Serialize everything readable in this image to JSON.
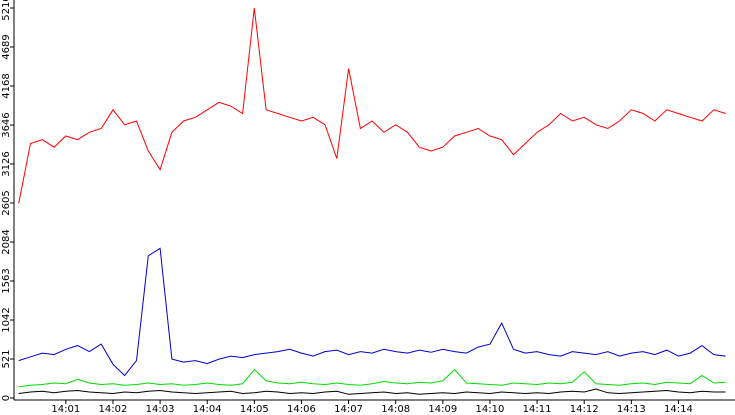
{
  "chart_data": {
    "type": "line",
    "x": [
      0,
      0.25,
      0.5,
      0.75,
      1,
      1.25,
      1.5,
      1.75,
      2,
      2.25,
      2.5,
      2.75,
      3,
      3.25,
      3.5,
      3.75,
      4,
      4.25,
      4.5,
      4.75,
      5,
      5.25,
      5.5,
      5.75,
      6,
      6.25,
      6.5,
      6.75,
      7,
      7.25,
      7.5,
      7.75,
      8,
      8.25,
      8.5,
      8.75,
      9,
      9.25,
      9.5,
      9.75,
      10,
      10.25,
      10.5,
      10.75,
      11,
      11.25,
      11.5,
      11.75,
      12,
      12.25,
      12.5,
      12.75,
      13,
      13.25,
      13.5,
      13.75,
      14,
      14.25,
      14.5,
      14.75,
      15
    ],
    "series": [
      {
        "color": "#ff0000",
        "values": [
          2600,
          3400,
          3450,
          3350,
          3500,
          3450,
          3550,
          3600,
          3850,
          3650,
          3700,
          3300,
          3050,
          3550,
          3700,
          3750,
          3850,
          3950,
          3900,
          3800,
          5210,
          3850,
          3800,
          3750,
          3700,
          3750,
          3650,
          3200,
          4400,
          3600,
          3700,
          3550,
          3650,
          3550,
          3350,
          3300,
          3350,
          3500,
          3550,
          3600,
          3500,
          3450,
          3250,
          3400,
          3550,
          3650,
          3800,
          3700,
          3750,
          3650,
          3600,
          3700,
          3850,
          3800,
          3700,
          3850,
          3800,
          3750,
          3700,
          3850,
          3800
        ]
      },
      {
        "color": "#0000cc",
        "values": [
          500,
          550,
          600,
          580,
          650,
          700,
          620,
          720,
          450,
          300,
          500,
          1900,
          2000,
          520,
          480,
          500,
          460,
          520,
          560,
          540,
          580,
          600,
          620,
          650,
          600,
          560,
          620,
          640,
          580,
          620,
          600,
          650,
          620,
          600,
          640,
          610,
          650,
          620,
          600,
          680,
          720,
          1000,
          650,
          600,
          620,
          580,
          560,
          620,
          600,
          580,
          620,
          560,
          600,
          620,
          580,
          640,
          560,
          600,
          700,
          580,
          560
        ]
      },
      {
        "color": "#00dd00",
        "values": [
          150,
          170,
          180,
          200,
          190,
          250,
          200,
          180,
          190,
          170,
          180,
          200,
          180,
          190,
          170,
          180,
          200,
          180,
          170,
          190,
          380,
          230,
          200,
          190,
          210,
          190,
          180,
          200,
          180,
          170,
          190,
          220,
          200,
          190,
          210,
          200,
          230,
          380,
          200,
          190,
          180,
          170,
          200,
          190,
          180,
          200,
          190,
          210,
          350,
          190,
          180,
          170,
          190,
          200,
          180,
          210,
          200,
          190,
          300,
          200,
          210
        ]
      },
      {
        "color": "#000000",
        "values": [
          60,
          80,
          90,
          70,
          90,
          100,
          80,
          70,
          60,
          80,
          70,
          90,
          100,
          80,
          70,
          60,
          70,
          80,
          90,
          60,
          70,
          90,
          80,
          60,
          70,
          60,
          80,
          90,
          50,
          60,
          70,
          80,
          60,
          70,
          50,
          60,
          70,
          60,
          80,
          70,
          60,
          80,
          70,
          60,
          70,
          60,
          80,
          90,
          80,
          120,
          70,
          60,
          70,
          80,
          90,
          100,
          80,
          70,
          90,
          80,
          80
        ]
      }
    ],
    "xlim": [
      -0.1,
      15.2
    ],
    "xticks": [
      {
        "value": 1,
        "label": "14:01"
      },
      {
        "value": 2,
        "label": "14:02"
      },
      {
        "value": 3,
        "label": "14:03"
      },
      {
        "value": 4,
        "label": "14:04"
      },
      {
        "value": 5,
        "label": "14:05"
      },
      {
        "value": 6,
        "label": "14:06"
      },
      {
        "value": 7,
        "label": "14:07"
      },
      {
        "value": 8,
        "label": "14:08"
      },
      {
        "value": 9,
        "label": "14:09"
      },
      {
        "value": 10,
        "label": "14:10"
      },
      {
        "value": 11,
        "label": "14:11"
      },
      {
        "value": 12,
        "label": "14:12"
      },
      {
        "value": 13,
        "label": "14:13"
      },
      {
        "value": 14,
        "label": "14:14"
      }
    ],
    "ylim": [
      0,
      5210
    ],
    "yticks": [
      0,
      521,
      1042,
      1563,
      2084,
      2605,
      3126,
      3646,
      4168,
      4689,
      5210
    ]
  }
}
